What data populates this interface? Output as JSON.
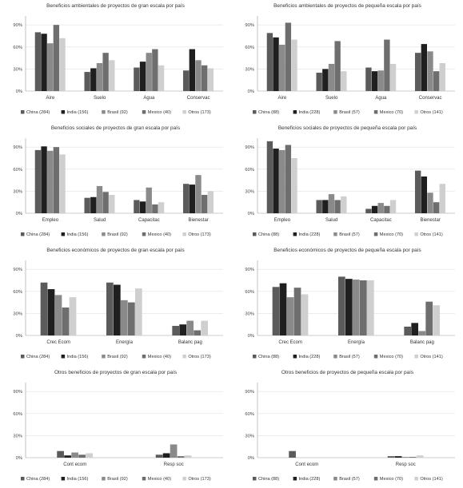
{
  "colors": [
    "#5b5b5b",
    "#1f1f1f",
    "#8a8a8a",
    "#6e6e6e",
    "#cfcfcf"
  ],
  "chart_data": [
    {
      "type": "bar",
      "title": "Beneficios ambientales de proyectos de gran escala por país",
      "categories": [
        "Aire",
        "Suelo",
        "Agua",
        "Conservac"
      ],
      "ylim": [
        0,
        100
      ],
      "yticks": [
        "0%",
        "30%",
        "60%",
        "90%"
      ],
      "yticks_values": [
        0,
        30,
        60,
        90
      ],
      "series": [
        {
          "name": "China (284)",
          "values": [
            80,
            26,
            32,
            28
          ]
        },
        {
          "name": "India (156)",
          "values": [
            78,
            31,
            40,
            57
          ]
        },
        {
          "name": "Brasil (92)",
          "values": [
            65,
            38,
            52,
            42
          ]
        },
        {
          "name": "Mexico (40)",
          "values": [
            90,
            52,
            57,
            35
          ]
        },
        {
          "name": "Otros (173)",
          "values": [
            72,
            42,
            35,
            31
          ]
        }
      ]
    },
    {
      "type": "bar",
      "title": "Beneficios ambientales de proyectos de pequeña escala por país",
      "categories": [
        "Aire",
        "Suelo",
        "Agua",
        "Conservac"
      ],
      "ylim": [
        0,
        100
      ],
      "yticks": [
        "0%",
        "30%",
        "60%",
        "90%"
      ],
      "yticks_values": [
        0,
        30,
        60,
        90
      ],
      "series": [
        {
          "name": "China (88)",
          "values": [
            79,
            25,
            32,
            52
          ]
        },
        {
          "name": "India (228)",
          "values": [
            73,
            30,
            27,
            64
          ]
        },
        {
          "name": "Brasil (57)",
          "values": [
            63,
            37,
            28,
            54
          ]
        },
        {
          "name": "Mexico (70)",
          "values": [
            93,
            68,
            70,
            27
          ]
        },
        {
          "name": "Otros (141)",
          "values": [
            70,
            27,
            37,
            38
          ]
        }
      ]
    },
    {
      "type": "bar",
      "title": "Beneficios sociales de proyectos de gran escala por país",
      "categories": [
        "Empleo",
        "Salud",
        "Capacitac",
        "Bienestar"
      ],
      "ylim": [
        0,
        100
      ],
      "yticks": [
        "0%",
        "30%",
        "60%",
        "90%"
      ],
      "yticks_values": [
        0,
        30,
        60,
        90
      ],
      "series": [
        {
          "name": "China (284)",
          "values": [
            86,
            21,
            18,
            40
          ]
        },
        {
          "name": "India (156)",
          "values": [
            91,
            22,
            16,
            39
          ]
        },
        {
          "name": "Brasil (92)",
          "values": [
            85,
            37,
            35,
            52
          ]
        },
        {
          "name": "Mexico (40)",
          "values": [
            90,
            29,
            12,
            25
          ]
        },
        {
          "name": "Otros (173)",
          "values": [
            80,
            25,
            15,
            30
          ]
        }
      ]
    },
    {
      "type": "bar",
      "title": "Beneficios sociales de proyectos de pequeña escala por país",
      "categories": [
        "Empleo",
        "Salud",
        "Capacitac",
        "Bienestar"
      ],
      "ylim": [
        0,
        100
      ],
      "yticks": [
        "0%",
        "30%",
        "60%",
        "90%"
      ],
      "yticks_values": [
        0,
        30,
        60,
        90
      ],
      "series": [
        {
          "name": "China (88)",
          "values": [
            98,
            18,
            6,
            58
          ]
        },
        {
          "name": "India (228)",
          "values": [
            88,
            18,
            10,
            50
          ]
        },
        {
          "name": "Brasil (57)",
          "values": [
            86,
            26,
            14,
            28
          ]
        },
        {
          "name": "Mexico (70)",
          "values": [
            93,
            18,
            10,
            15
          ]
        },
        {
          "name": "Otros (141)",
          "values": [
            75,
            23,
            18,
            40
          ]
        }
      ]
    },
    {
      "type": "bar",
      "title": "Beneficios económicos de proyectos de gran escala por país",
      "categories": [
        "Crec Ecom",
        "Energía",
        "Balanc pag"
      ],
      "ylim": [
        0,
        100
      ],
      "yticks": [
        "0%",
        "30%",
        "60%",
        "90%"
      ],
      "yticks_values": [
        0,
        30,
        60,
        90
      ],
      "series": [
        {
          "name": "China (284)",
          "values": [
            72,
            72,
            13
          ]
        },
        {
          "name": "India (156)",
          "values": [
            63,
            69,
            15
          ]
        },
        {
          "name": "Brasil (92)",
          "values": [
            55,
            48,
            20
          ]
        },
        {
          "name": "Mexico (40)",
          "values": [
            38,
            45,
            7
          ]
        },
        {
          "name": "Otros (173)",
          "values": [
            52,
            64,
            20
          ]
        }
      ]
    },
    {
      "type": "bar",
      "title": "Beneficios económicos de proyectos de pequeña escala por país",
      "categories": [
        "Crec Ecom",
        "Energía",
        "Balanc pag"
      ],
      "ylim": [
        0,
        100
      ],
      "yticks": [
        "0%",
        "30%",
        "60%",
        "90%"
      ],
      "yticks_values": [
        0,
        30,
        60,
        90
      ],
      "series": [
        {
          "name": "China (88)",
          "values": [
            66,
            80,
            12
          ]
        },
        {
          "name": "India (228)",
          "values": [
            71,
            77,
            17
          ]
        },
        {
          "name": "Brasil (57)",
          "values": [
            52,
            76,
            6
          ]
        },
        {
          "name": "Mexico (70)",
          "values": [
            65,
            75,
            46
          ]
        },
        {
          "name": "Otros (141)",
          "values": [
            56,
            75,
            41
          ]
        }
      ]
    },
    {
      "type": "bar",
      "title": "Otros beneficios de proyectos de gran escala por país",
      "categories": [
        "Cont ecom",
        "Resp soc"
      ],
      "ylim": [
        0,
        100
      ],
      "yticks": [
        "0%",
        "30%",
        "60%",
        "90%"
      ],
      "yticks_values": [
        0,
        30,
        60,
        90
      ],
      "series": [
        {
          "name": "China (284)",
          "values": [
            9,
            4
          ]
        },
        {
          "name": "India (156)",
          "values": [
            3,
            6
          ]
        },
        {
          "name": "Brasil (92)",
          "values": [
            7,
            18
          ]
        },
        {
          "name": "Mexico (40)",
          "values": [
            4,
            2
          ]
        },
        {
          "name": "Otros (173)",
          "values": [
            6,
            3
          ]
        }
      ]
    },
    {
      "type": "bar",
      "title": "Otros beneficios de proyectos de pequeña escala por país",
      "categories": [
        "Cont ecom",
        "Resp soc"
      ],
      "ylim": [
        0,
        100
      ],
      "yticks": [
        "0%",
        "30%",
        "60%",
        "90%"
      ],
      "yticks_values": [
        0,
        30,
        60,
        90
      ],
      "series": [
        {
          "name": "China (88)",
          "values": [
            9,
            2
          ]
        },
        {
          "name": "India (228)",
          "values": [
            0,
            2
          ]
        },
        {
          "name": "Brasil (57)",
          "values": [
            0,
            1
          ]
        },
        {
          "name": "Mexico (70)",
          "values": [
            0,
            1
          ]
        },
        {
          "name": "Otros (141)",
          "values": [
            0,
            3
          ]
        }
      ]
    }
  ]
}
